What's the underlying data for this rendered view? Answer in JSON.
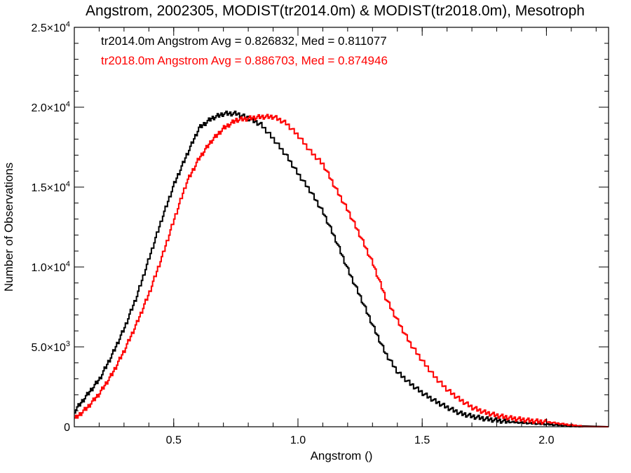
{
  "chart_data": {
    "type": "line",
    "step": true,
    "title": "Angstrom, 2002305, MODIST(tr2014.0m) & MODIST(tr2018.0m), Mesotroph",
    "xlabel": "Angstrom ()",
    "ylabel": "Number of Observations",
    "xlim": [
      0.1,
      2.25
    ],
    "ylim": [
      0,
      25000
    ],
    "x_major_ticks": [
      0.5,
      1.0,
      1.5,
      2.0
    ],
    "x_tick_labels": [
      "0.5",
      "1.0",
      "1.5",
      "2.0"
    ],
    "x_minor_step": 0.1,
    "y_major_ticks": [
      0,
      5000,
      10000,
      15000,
      20000,
      25000
    ],
    "y_tick_labels": [
      {
        "mantissa": "0",
        "exp": ""
      },
      {
        "mantissa": "5.0×10",
        "exp": "3"
      },
      {
        "mantissa": "1.0×10",
        "exp": "4"
      },
      {
        "mantissa": "1.5×10",
        "exp": "4"
      },
      {
        "mantissa": "2.0×10",
        "exp": "4"
      },
      {
        "mantissa": "2.5×10",
        "exp": "4"
      }
    ],
    "y_minor_step": 1000,
    "grid": false,
    "annotations": [
      {
        "text": "tr2014.0m Angstrom Avg = 0.826832, Med = 0.811077",
        "color": "#000000"
      },
      {
        "text": "tr2018.0m Angstrom Avg = 0.886703, Med = 0.874946",
        "color": "#ff0000"
      }
    ],
    "series": [
      {
        "color": "#000000",
        "x": [
          0.1,
          0.15,
          0.2,
          0.25,
          0.3,
          0.35,
          0.4,
          0.45,
          0.5,
          0.55,
          0.6,
          0.65,
          0.7,
          0.75,
          0.8,
          0.85,
          0.9,
          0.95,
          1.0,
          1.05,
          1.1,
          1.15,
          1.2,
          1.25,
          1.3,
          1.35,
          1.4,
          1.45,
          1.5,
          1.55,
          1.6,
          1.65,
          1.7,
          1.75,
          1.8,
          1.85,
          1.9,
          1.95,
          2.0,
          2.05,
          2.1,
          2.15
        ],
        "y": [
          1000,
          2000,
          3000,
          4500,
          6200,
          8200,
          10600,
          13000,
          15200,
          17000,
          18700,
          19300,
          19600,
          19600,
          19300,
          18900,
          18000,
          17000,
          15800,
          14700,
          13400,
          11700,
          9800,
          8100,
          6300,
          4600,
          3400,
          2700,
          2100,
          1600,
          1200,
          850,
          650,
          500,
          400,
          300,
          250,
          200,
          150,
          100,
          50,
          0
        ]
      },
      {
        "color": "#ff0000",
        "x": [
          0.1,
          0.15,
          0.2,
          0.25,
          0.3,
          0.35,
          0.4,
          0.45,
          0.5,
          0.55,
          0.6,
          0.65,
          0.7,
          0.75,
          0.8,
          0.85,
          0.9,
          0.95,
          1.0,
          1.05,
          1.1,
          1.15,
          1.2,
          1.25,
          1.3,
          1.35,
          1.4,
          1.45,
          1.5,
          1.55,
          1.6,
          1.65,
          1.7,
          1.75,
          1.8,
          1.85,
          1.9,
          1.95,
          2.0,
          2.05,
          2.1,
          2.15
        ],
        "y": [
          500,
          1200,
          2100,
          3300,
          4800,
          6500,
          8400,
          10600,
          13000,
          15300,
          16800,
          17900,
          18700,
          19200,
          19300,
          19400,
          19400,
          19000,
          18200,
          17200,
          16400,
          14900,
          13500,
          11900,
          10200,
          8100,
          6600,
          5200,
          4100,
          3100,
          2300,
          1700,
          1200,
          900,
          700,
          550,
          450,
          350,
          300,
          200,
          100,
          0
        ]
      }
    ]
  }
}
